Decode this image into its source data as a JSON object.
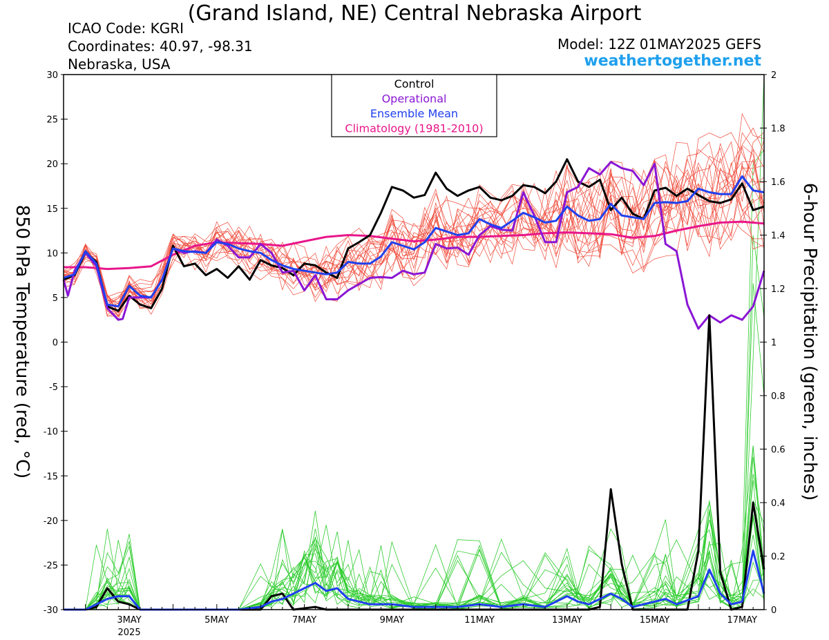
{
  "header": {
    "title": "(Grand Island, NE) Central Nebraska Airport",
    "icao": "ICAO Code: KGRI",
    "coordinates": "Coordinates: 40.97, -98.31",
    "region": "Nebraska, USA",
    "model": "Model: 12Z 01MAY2025 GEFS",
    "site": "weathertogether.net"
  },
  "chart_data": {
    "type": "line",
    "ylabel_left": "850 hPa Temperature (red, °C)",
    "ylabel_right": "6-hour Precipitation (green, inches)",
    "ylim_left": [
      -30,
      30
    ],
    "ylim_right": [
      0,
      2
    ],
    "yticks_left": [
      "30",
      "25",
      "20",
      "15",
      "10",
      "5",
      "0",
      "-5",
      "-10",
      "-15",
      "-20",
      "-25",
      "-30"
    ],
    "yticks_right": [
      "2",
      "1.8",
      "1.6",
      "1.4",
      "1.2",
      "1",
      "0.8",
      "0.6",
      "0.4",
      "0.2",
      "0"
    ],
    "x_start_day": 1.5,
    "x_end_day": 17.5,
    "xticks": [
      {
        "day": 3,
        "label": "3MAY",
        "sub": "2025"
      },
      {
        "day": 5,
        "label": "5MAY",
        "sub": ""
      },
      {
        "day": 7,
        "label": "7MAY",
        "sub": ""
      },
      {
        "day": 9,
        "label": "9MAY",
        "sub": ""
      },
      {
        "day": 11,
        "label": "11MAY",
        "sub": ""
      },
      {
        "day": 13,
        "label": "13MAY",
        "sub": ""
      },
      {
        "day": 15,
        "label": "15MAY",
        "sub": ""
      },
      {
        "day": 17,
        "label": "17MAY",
        "sub": ""
      }
    ],
    "legend": {
      "position": "top-center",
      "entries": [
        {
          "name": "Control",
          "color": "#000000"
        },
        {
          "name": "Operational",
          "color": "#8a16d4"
        },
        {
          "name": "Ensemble Mean",
          "color": "#2040ee"
        },
        {
          "name": "Climatology (1981-2010)",
          "color": "#e8168a"
        }
      ]
    },
    "colors": {
      "member_temp": "#f04a3a",
      "member_precip": "#2ecc2e",
      "control": "#000000",
      "operational": "#8a16d4",
      "mean": "#2040ee",
      "climatology": "#e8168a"
    },
    "temperature_series": {
      "control": [
        [
          1.5,
          7.0
        ],
        [
          1.75,
          7.5
        ],
        [
          2.0,
          10.0
        ],
        [
          2.25,
          9.0
        ],
        [
          2.5,
          4.0
        ],
        [
          2.75,
          3.5
        ],
        [
          3.0,
          5.2
        ],
        [
          3.25,
          4.2
        ],
        [
          3.5,
          3.8
        ],
        [
          3.75,
          6.0
        ],
        [
          4.0,
          10.8
        ],
        [
          4.25,
          8.5
        ],
        [
          4.5,
          8.8
        ],
        [
          4.75,
          7.5
        ],
        [
          5.0,
          8.2
        ],
        [
          5.25,
          7.2
        ],
        [
          5.5,
          8.5
        ],
        [
          5.75,
          7.0
        ],
        [
          6.0,
          9.2
        ],
        [
          6.25,
          8.6
        ],
        [
          6.5,
          8.3
        ],
        [
          6.75,
          7.5
        ],
        [
          7.0,
          8.8
        ],
        [
          7.25,
          8.6
        ],
        [
          7.5,
          7.8
        ],
        [
          7.75,
          7.2
        ],
        [
          8.0,
          10.5
        ],
        [
          8.25,
          11.2
        ],
        [
          8.5,
          12.0
        ],
        [
          8.75,
          14.5
        ],
        [
          9.0,
          17.4
        ],
        [
          9.25,
          17.0
        ],
        [
          9.5,
          16.2
        ],
        [
          9.75,
          16.5
        ],
        [
          10.0,
          19.0
        ],
        [
          10.25,
          17.2
        ],
        [
          10.5,
          16.4
        ],
        [
          10.75,
          17.0
        ],
        [
          11.0,
          17.4
        ],
        [
          11.25,
          16.2
        ],
        [
          11.5,
          15.9
        ],
        [
          11.75,
          16.4
        ],
        [
          12.0,
          17.6
        ],
        [
          12.25,
          17.4
        ],
        [
          12.5,
          16.7
        ],
        [
          12.75,
          18.0
        ],
        [
          13.0,
          20.5
        ],
        [
          13.25,
          18.0
        ],
        [
          13.5,
          17.4
        ],
        [
          13.75,
          18.2
        ],
        [
          14.0,
          14.8
        ],
        [
          14.25,
          16.2
        ],
        [
          14.5,
          14.4
        ],
        [
          14.75,
          13.8
        ],
        [
          15.0,
          17.0
        ],
        [
          15.25,
          17.3
        ],
        [
          15.5,
          16.4
        ],
        [
          15.75,
          17.2
        ],
        [
          16.0,
          16.5
        ],
        [
          16.25,
          15.8
        ],
        [
          16.5,
          15.6
        ],
        [
          16.75,
          16.0
        ],
        [
          17.0,
          17.8
        ],
        [
          17.25,
          14.8
        ],
        [
          17.5,
          15.2
        ]
      ],
      "operational": [
        [
          1.5,
          7.0
        ],
        [
          1.6,
          5.2
        ],
        [
          1.75,
          8.0
        ],
        [
          2.0,
          10.0
        ],
        [
          2.25,
          8.5
        ],
        [
          2.5,
          3.8
        ],
        [
          2.75,
          2.5
        ],
        [
          2.85,
          2.6
        ],
        [
          3.0,
          5.0
        ],
        [
          3.25,
          5.0
        ],
        [
          3.5,
          5.0
        ],
        [
          3.75,
          7.0
        ],
        [
          4.0,
          10.5
        ],
        [
          4.25,
          10.0
        ],
        [
          4.5,
          10.2
        ],
        [
          4.75,
          10.0
        ],
        [
          5.0,
          11.5
        ],
        [
          5.25,
          10.8
        ],
        [
          5.5,
          9.5
        ],
        [
          5.75,
          9.5
        ],
        [
          6.0,
          11.0
        ],
        [
          6.25,
          10.0
        ],
        [
          6.5,
          7.8
        ],
        [
          6.75,
          8.0
        ],
        [
          7.0,
          5.8
        ],
        [
          7.25,
          7.5
        ],
        [
          7.5,
          4.8
        ],
        [
          7.75,
          4.8
        ],
        [
          8.0,
          5.8
        ],
        [
          8.25,
          6.5
        ],
        [
          8.5,
          7.2
        ],
        [
          8.75,
          7.3
        ],
        [
          9.0,
          7.2
        ],
        [
          9.25,
          8.0
        ],
        [
          9.5,
          7.6
        ],
        [
          9.75,
          7.8
        ],
        [
          10.0,
          11.0
        ],
        [
          10.25,
          10.5
        ],
        [
          10.5,
          10.6
        ],
        [
          10.75,
          9.8
        ],
        [
          11.0,
          12.0
        ],
        [
          11.25,
          13.0
        ],
        [
          11.5,
          12.6
        ],
        [
          11.75,
          12.5
        ],
        [
          12.0,
          16.8
        ],
        [
          12.25,
          14.2
        ],
        [
          12.5,
          11.2
        ],
        [
          12.75,
          11.2
        ],
        [
          13.0,
          16.8
        ],
        [
          13.25,
          17.4
        ],
        [
          13.5,
          19.5
        ],
        [
          13.75,
          18.8
        ],
        [
          14.0,
          20.2
        ],
        [
          14.25,
          19.5
        ],
        [
          14.5,
          19.2
        ],
        [
          14.75,
          17.6
        ],
        [
          15.0,
          20.0
        ],
        [
          15.25,
          11.0
        ],
        [
          15.5,
          10.2
        ],
        [
          15.75,
          4.2
        ],
        [
          16.0,
          1.5
        ],
        [
          16.25,
          3.0
        ],
        [
          16.5,
          2.2
        ],
        [
          16.75,
          3.0
        ],
        [
          17.0,
          2.5
        ],
        [
          17.25,
          4.0
        ],
        [
          17.5,
          8.0
        ]
      ],
      "mean": [
        [
          1.5,
          7.2
        ],
        [
          1.75,
          7.6
        ],
        [
          2.0,
          10.2
        ],
        [
          2.25,
          8.8
        ],
        [
          2.5,
          4.2
        ],
        [
          2.75,
          4.0
        ],
        [
          3.0,
          6.3
        ],
        [
          3.25,
          5.2
        ],
        [
          3.5,
          5.0
        ],
        [
          3.75,
          7.0
        ],
        [
          4.0,
          10.5
        ],
        [
          4.25,
          10.2
        ],
        [
          4.5,
          10.1
        ],
        [
          4.75,
          10.0
        ],
        [
          5.0,
          11.2
        ],
        [
          5.25,
          11.0
        ],
        [
          5.5,
          10.5
        ],
        [
          5.75,
          10.2
        ],
        [
          6.0,
          10.0
        ],
        [
          6.25,
          9.2
        ],
        [
          6.5,
          8.6
        ],
        [
          6.75,
          8.2
        ],
        [
          7.0,
          8.0
        ],
        [
          7.25,
          7.8
        ],
        [
          7.5,
          7.6
        ],
        [
          7.75,
          7.8
        ],
        [
          8.0,
          9.0
        ],
        [
          8.25,
          8.8
        ],
        [
          8.5,
          8.8
        ],
        [
          8.75,
          9.6
        ],
        [
          9.0,
          11.2
        ],
        [
          9.25,
          10.8
        ],
        [
          9.5,
          10.4
        ],
        [
          9.75,
          11.2
        ],
        [
          10.0,
          12.8
        ],
        [
          10.25,
          12.4
        ],
        [
          10.5,
          12.0
        ],
        [
          10.75,
          12.2
        ],
        [
          11.0,
          13.8
        ],
        [
          11.25,
          13.2
        ],
        [
          11.5,
          12.8
        ],
        [
          11.75,
          13.6
        ],
        [
          12.0,
          14.5
        ],
        [
          12.25,
          14.0
        ],
        [
          12.5,
          13.4
        ],
        [
          12.75,
          13.6
        ],
        [
          13.0,
          15.2
        ],
        [
          13.25,
          14.2
        ],
        [
          13.5,
          13.6
        ],
        [
          13.75,
          13.8
        ],
        [
          14.0,
          15.5
        ],
        [
          14.25,
          14.2
        ],
        [
          14.5,
          14.0
        ],
        [
          14.75,
          13.8
        ],
        [
          15.0,
          15.6
        ],
        [
          15.25,
          15.7
        ],
        [
          15.5,
          15.6
        ],
        [
          15.75,
          15.8
        ],
        [
          16.0,
          17.2
        ],
        [
          16.25,
          16.8
        ],
        [
          16.5,
          16.6
        ],
        [
          16.75,
          16.6
        ],
        [
          17.0,
          18.6
        ],
        [
          17.25,
          17.0
        ],
        [
          17.5,
          16.8
        ]
      ],
      "climatology": [
        [
          1.5,
          8.4
        ],
        [
          2.0,
          8.4
        ],
        [
          2.5,
          8.2
        ],
        [
          3.0,
          8.3
        ],
        [
          3.5,
          8.5
        ],
        [
          4.0,
          9.8
        ],
        [
          4.5,
          10.8
        ],
        [
          5.0,
          11.2
        ],
        [
          5.5,
          11.1
        ],
        [
          6.0,
          11.0
        ],
        [
          6.5,
          10.8
        ],
        [
          7.0,
          11.3
        ],
        [
          7.5,
          11.8
        ],
        [
          8.0,
          12.0
        ],
        [
          8.5,
          11.9
        ],
        [
          9.0,
          11.6
        ],
        [
          9.5,
          11.3
        ],
        [
          10.0,
          11.5
        ],
        [
          10.5,
          11.8
        ],
        [
          11.0,
          11.8
        ],
        [
          11.5,
          11.9
        ],
        [
          12.0,
          12.0
        ],
        [
          12.5,
          12.2
        ],
        [
          13.0,
          12.3
        ],
        [
          13.5,
          12.2
        ],
        [
          14.0,
          12.1
        ],
        [
          14.5,
          11.7
        ],
        [
          15.0,
          11.9
        ],
        [
          15.5,
          12.5
        ],
        [
          16.0,
          13.0
        ],
        [
          16.5,
          13.4
        ],
        [
          17.0,
          13.5
        ],
        [
          17.5,
          13.3
        ]
      ]
    },
    "precip_series": {
      "control": [
        [
          1.5,
          0
        ],
        [
          2.0,
          0
        ],
        [
          2.25,
          0.01
        ],
        [
          2.5,
          0.08
        ],
        [
          2.75,
          0.03
        ],
        [
          3.0,
          0.02
        ],
        [
          3.25,
          0
        ],
        [
          3.5,
          0
        ],
        [
          5.5,
          0
        ],
        [
          6.0,
          0
        ],
        [
          6.25,
          0.05
        ],
        [
          6.5,
          0.06
        ],
        [
          6.75,
          0
        ],
        [
          7.25,
          0.01
        ],
        [
          7.5,
          0
        ],
        [
          13.5,
          0
        ],
        [
          13.75,
          0.01
        ],
        [
          14.0,
          0.45
        ],
        [
          14.25,
          0.17
        ],
        [
          14.5,
          0
        ],
        [
          15.5,
          0
        ],
        [
          15.75,
          0
        ],
        [
          16.0,
          0.22
        ],
        [
          16.25,
          1.1
        ],
        [
          16.5,
          0.14
        ],
        [
          16.75,
          0
        ],
        [
          17.0,
          0.01
        ],
        [
          17.25,
          0.4
        ],
        [
          17.5,
          0.15
        ]
      ],
      "operational": [],
      "mean": [
        [
          1.5,
          0
        ],
        [
          2.0,
          0
        ],
        [
          2.25,
          0.02
        ],
        [
          2.5,
          0.04
        ],
        [
          2.75,
          0.05
        ],
        [
          3.0,
          0.05
        ],
        [
          3.25,
          0
        ],
        [
          3.5,
          0
        ],
        [
          5.5,
          0
        ],
        [
          6.0,
          0.01
        ],
        [
          6.25,
          0.03
        ],
        [
          6.5,
          0.04
        ],
        [
          6.75,
          0.06
        ],
        [
          7.0,
          0.08
        ],
        [
          7.25,
          0.1
        ],
        [
          7.5,
          0.07
        ],
        [
          7.75,
          0.08
        ],
        [
          8.0,
          0.04
        ],
        [
          8.25,
          0.03
        ],
        [
          8.5,
          0.02
        ],
        [
          8.75,
          0.02
        ],
        [
          9.0,
          0.02
        ],
        [
          9.5,
          0.01
        ],
        [
          10.0,
          0.01
        ],
        [
          10.5,
          0.01
        ],
        [
          11.0,
          0.02
        ],
        [
          11.5,
          0.01
        ],
        [
          12.0,
          0.02
        ],
        [
          12.5,
          0.01
        ],
        [
          13.0,
          0.05
        ],
        [
          13.25,
          0.03
        ],
        [
          13.5,
          0.02
        ],
        [
          14.0,
          0.06
        ],
        [
          14.25,
          0.04
        ],
        [
          14.5,
          0.01
        ],
        [
          15.0,
          0.03
        ],
        [
          15.25,
          0.04
        ],
        [
          15.5,
          0.02
        ],
        [
          16.0,
          0.05
        ],
        [
          16.25,
          0.15
        ],
        [
          16.5,
          0.06
        ],
        [
          16.75,
          0.02
        ],
        [
          17.0,
          0.03
        ],
        [
          17.25,
          0.22
        ],
        [
          17.5,
          0.06
        ]
      ]
    }
  }
}
